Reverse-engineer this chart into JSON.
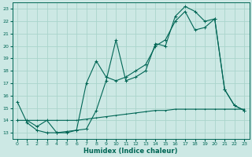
{
  "xlabel": "Humidex (Indice chaleur)",
  "bg_color": "#cce8e4",
  "grid_color": "#aad4cc",
  "line_color": "#006655",
  "xlim": [
    -0.5,
    23.5
  ],
  "ylim": [
    12.5,
    23.5
  ],
  "xticks": [
    0,
    1,
    2,
    3,
    4,
    5,
    6,
    7,
    8,
    9,
    10,
    11,
    12,
    13,
    14,
    15,
    16,
    17,
    18,
    19,
    20,
    21,
    22,
    23
  ],
  "yticks": [
    13,
    14,
    15,
    16,
    17,
    18,
    19,
    20,
    21,
    22,
    23
  ],
  "line1_x": [
    0,
    1,
    2,
    3,
    4,
    5,
    6,
    7,
    8,
    9,
    10,
    11,
    12,
    13,
    14,
    15,
    16,
    17,
    18,
    19,
    20,
    21,
    22,
    23
  ],
  "line1_y": [
    15.5,
    13.8,
    13.2,
    13.0,
    13.0,
    13.1,
    13.2,
    13.3,
    14.8,
    17.2,
    20.5,
    17.2,
    17.5,
    18.0,
    20.2,
    20.0,
    22.4,
    23.2,
    22.8,
    22.0,
    22.2,
    16.5,
    15.2,
    14.8
  ],
  "line2_x": [
    1,
    2,
    3,
    4,
    5,
    6,
    7,
    8,
    9,
    10,
    11,
    12,
    13,
    14,
    15,
    16,
    17,
    18,
    19,
    20,
    21,
    22,
    23
  ],
  "line2_y": [
    14.0,
    14.0,
    14.0,
    14.0,
    14.0,
    14.0,
    14.1,
    14.2,
    14.3,
    14.4,
    14.5,
    14.6,
    14.7,
    14.8,
    14.8,
    14.9,
    14.9,
    14.9,
    14.9,
    14.9,
    14.9,
    14.9,
    14.9
  ],
  "line3_x": [
    0,
    1,
    2,
    3,
    4,
    5,
    6,
    7,
    8,
    9,
    10,
    11,
    12,
    13,
    14,
    15,
    16,
    17,
    18,
    19,
    20,
    21,
    22,
    23
  ],
  "line3_y": [
    14.0,
    14.0,
    13.5,
    14.0,
    13.0,
    13.0,
    13.2,
    17.0,
    18.8,
    17.5,
    17.2,
    17.5,
    18.0,
    18.5,
    20.0,
    20.5,
    22.0,
    22.8,
    21.3,
    21.5,
    22.2,
    16.5,
    15.2,
    14.8
  ]
}
